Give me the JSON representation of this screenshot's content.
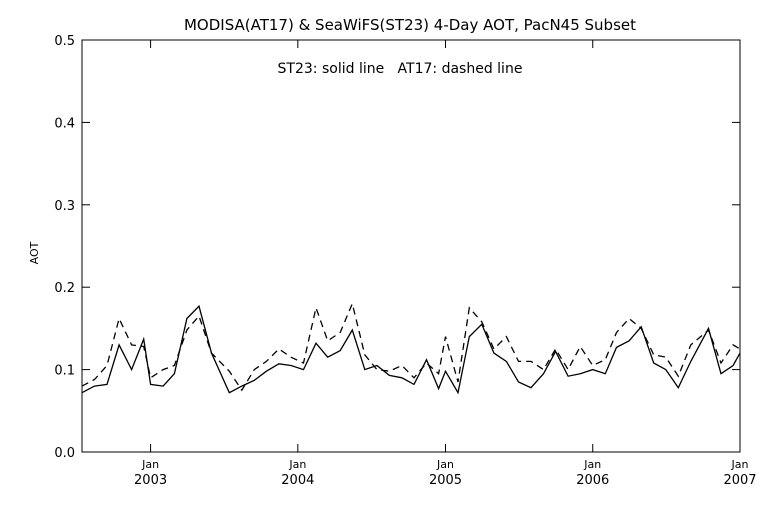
{
  "chart_data": {
    "type": "line",
    "title": "MODISA(AT17) & SeaWiFS(ST23) 4-Day AOT, PacN45 Subset",
    "annotation": "ST23: solid line   AT17: dashed line",
    "xlabel": "",
    "ylabel": "AOT",
    "ylim": [
      0.0,
      0.5
    ],
    "yticks": [
      "0.0",
      "0.1",
      "0.2",
      "0.3",
      "0.4",
      "0.5"
    ],
    "xlim": [
      "2002-07-15",
      "2007-01-01"
    ],
    "xticks": [
      {
        "month": "Jan",
        "year": "2003",
        "date": "2003-01-01"
      },
      {
        "month": "Jan",
        "year": "2004",
        "date": "2004-01-01"
      },
      {
        "month": "Jan",
        "year": "2005",
        "date": "2005-01-01"
      },
      {
        "month": "Jan",
        "year": "2006",
        "date": "2006-01-01"
      },
      {
        "month": "Jan",
        "year": "2007",
        "date": "2007-01-01"
      }
    ],
    "grid": false,
    "legend": "none",
    "series": [
      {
        "name": "ST23",
        "style": "solid",
        "color": "#000000",
        "points": [
          [
            "2002-07-15",
            0.072
          ],
          [
            "2002-08-15",
            0.08
          ],
          [
            "2002-09-15",
            0.082
          ],
          [
            "2002-10-15",
            0.13
          ],
          [
            "2002-11-15",
            0.1
          ],
          [
            "2002-12-15",
            0.137
          ],
          [
            "2003-01-01",
            0.082
          ],
          [
            "2003-02-01",
            0.08
          ],
          [
            "2003-03-01",
            0.095
          ],
          [
            "2003-04-01",
            0.162
          ],
          [
            "2003-05-01",
            0.177
          ],
          [
            "2003-06-01",
            0.12
          ],
          [
            "2003-07-15",
            0.072
          ],
          [
            "2003-08-15",
            0.08
          ],
          [
            "2003-09-15",
            0.087
          ],
          [
            "2003-10-15",
            0.098
          ],
          [
            "2003-11-15",
            0.107
          ],
          [
            "2003-12-15",
            0.105
          ],
          [
            "2004-01-15",
            0.1
          ],
          [
            "2004-02-15",
            0.132
          ],
          [
            "2004-03-15",
            0.115
          ],
          [
            "2004-04-15",
            0.123
          ],
          [
            "2004-05-15",
            0.148
          ],
          [
            "2004-06-15",
            0.1
          ],
          [
            "2004-07-15",
            0.105
          ],
          [
            "2004-08-15",
            0.093
          ],
          [
            "2004-09-15",
            0.09
          ],
          [
            "2004-10-15",
            0.082
          ],
          [
            "2004-11-15",
            0.112
          ],
          [
            "2004-12-15",
            0.077
          ],
          [
            "2005-01-01",
            0.098
          ],
          [
            "2005-02-01",
            0.072
          ],
          [
            "2005-03-01",
            0.14
          ],
          [
            "2005-04-01",
            0.155
          ],
          [
            "2005-05-01",
            0.12
          ],
          [
            "2005-06-01",
            0.11
          ],
          [
            "2005-07-01",
            0.085
          ],
          [
            "2005-08-01",
            0.078
          ],
          [
            "2005-09-01",
            0.095
          ],
          [
            "2005-10-01",
            0.122
          ],
          [
            "2005-11-01",
            0.092
          ],
          [
            "2005-12-01",
            0.095
          ],
          [
            "2006-01-01",
            0.1
          ],
          [
            "2006-02-01",
            0.095
          ],
          [
            "2006-03-01",
            0.127
          ],
          [
            "2006-04-01",
            0.135
          ],
          [
            "2006-05-01",
            0.152
          ],
          [
            "2006-06-01",
            0.108
          ],
          [
            "2006-07-01",
            0.1
          ],
          [
            "2006-08-01",
            0.078
          ],
          [
            "2006-09-01",
            0.11
          ],
          [
            "2006-10-15",
            0.15
          ],
          [
            "2006-11-15",
            0.095
          ],
          [
            "2006-12-15",
            0.105
          ],
          [
            "2007-01-01",
            0.12
          ]
        ]
      },
      {
        "name": "AT17",
        "style": "dashed",
        "color": "#000000",
        "points": [
          [
            "2002-07-15",
            0.08
          ],
          [
            "2002-08-15",
            0.088
          ],
          [
            "2002-09-15",
            0.105
          ],
          [
            "2002-10-15",
            0.162
          ],
          [
            "2002-11-15",
            0.13
          ],
          [
            "2002-12-15",
            0.128
          ],
          [
            "2003-01-01",
            0.09
          ],
          [
            "2003-02-01",
            0.1
          ],
          [
            "2003-03-01",
            0.105
          ],
          [
            "2003-04-01",
            0.148
          ],
          [
            "2003-05-01",
            0.165
          ],
          [
            "2003-06-01",
            0.12
          ],
          [
            "2003-07-15",
            0.098
          ],
          [
            "2003-08-15",
            0.075
          ],
          [
            "2003-09-15",
            0.1
          ],
          [
            "2003-10-15",
            0.11
          ],
          [
            "2003-11-15",
            0.125
          ],
          [
            "2003-12-15",
            0.115
          ],
          [
            "2004-01-15",
            0.108
          ],
          [
            "2004-02-15",
            0.175
          ],
          [
            "2004-03-15",
            0.135
          ],
          [
            "2004-04-15",
            0.145
          ],
          [
            "2004-05-15",
            0.18
          ],
          [
            "2004-06-15",
            0.118
          ],
          [
            "2004-07-15",
            0.1
          ],
          [
            "2004-08-15",
            0.098
          ],
          [
            "2004-09-15",
            0.105
          ],
          [
            "2004-10-15",
            0.09
          ],
          [
            "2004-11-15",
            0.108
          ],
          [
            "2004-12-15",
            0.095
          ],
          [
            "2005-01-01",
            0.14
          ],
          [
            "2005-02-01",
            0.085
          ],
          [
            "2005-03-01",
            0.175
          ],
          [
            "2005-04-01",
            0.158
          ],
          [
            "2005-05-01",
            0.125
          ],
          [
            "2005-06-01",
            0.14
          ],
          [
            "2005-07-01",
            0.11
          ],
          [
            "2005-08-01",
            0.11
          ],
          [
            "2005-09-01",
            0.1
          ],
          [
            "2005-10-01",
            0.125
          ],
          [
            "2005-11-01",
            0.1
          ],
          [
            "2005-12-01",
            0.128
          ],
          [
            "2006-01-01",
            0.105
          ],
          [
            "2006-02-01",
            0.112
          ],
          [
            "2006-03-01",
            0.145
          ],
          [
            "2006-04-01",
            0.162
          ],
          [
            "2006-05-01",
            0.15
          ],
          [
            "2006-06-01",
            0.118
          ],
          [
            "2006-07-01",
            0.115
          ],
          [
            "2006-08-01",
            0.092
          ],
          [
            "2006-09-01",
            0.13
          ],
          [
            "2006-10-15",
            0.148
          ],
          [
            "2006-11-15",
            0.108
          ],
          [
            "2006-12-15",
            0.13
          ],
          [
            "2007-01-01",
            0.125
          ]
        ]
      }
    ]
  }
}
